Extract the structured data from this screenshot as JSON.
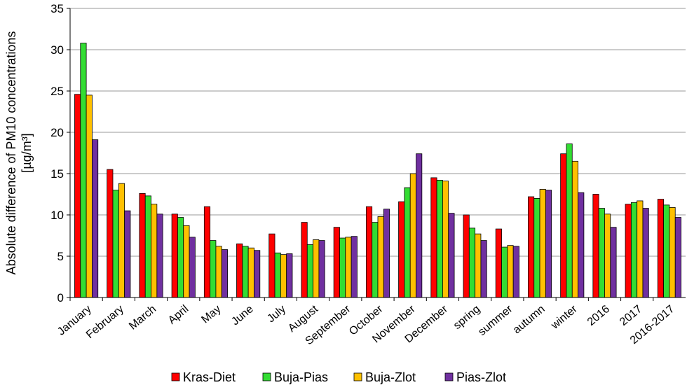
{
  "chart_data": {
    "type": "bar",
    "y_label_lines": [
      "Absolute difference of PM10 concentrations",
      "[µg/m³]"
    ],
    "categories": [
      "January",
      "February",
      "March",
      "April",
      "May",
      "June",
      "July",
      "August",
      "September",
      "October",
      "November",
      "December",
      "spring",
      "summer",
      "autumn",
      "winter",
      "2016",
      "2017",
      "2016-2017"
    ],
    "series": [
      {
        "name": "Kras-Diet",
        "color": "#ff0000",
        "values": [
          24.6,
          15.5,
          12.6,
          10.1,
          11.0,
          6.5,
          7.7,
          9.1,
          8.5,
          11.0,
          11.6,
          14.5,
          10.0,
          8.3,
          12.2,
          17.4,
          12.5,
          11.3,
          11.9
        ]
      },
      {
        "name": "Buja-Pias",
        "color": "#33dd33",
        "values": [
          30.8,
          13.0,
          12.3,
          9.7,
          6.9,
          6.2,
          5.4,
          6.4,
          7.2,
          9.1,
          13.3,
          14.2,
          8.4,
          6.1,
          12.0,
          18.6,
          10.8,
          11.5,
          11.2
        ]
      },
      {
        "name": "Buja-Zlot",
        "color": "#ffc000",
        "values": [
          24.5,
          13.8,
          11.3,
          8.7,
          6.2,
          6.0,
          5.2,
          7.0,
          7.3,
          9.8,
          15.0,
          14.1,
          7.7,
          6.3,
          13.1,
          16.5,
          10.1,
          11.7,
          10.9
        ]
      },
      {
        "name": "Pias-Zlot",
        "color": "#7030a0",
        "values": [
          19.1,
          10.5,
          10.1,
          7.3,
          5.8,
          5.7,
          5.3,
          6.9,
          7.4,
          10.7,
          17.4,
          10.2,
          6.9,
          6.2,
          13.0,
          12.7,
          8.5,
          10.8,
          9.7
        ]
      }
    ],
    "ylim": [
      0,
      35
    ],
    "yticks": [
      0,
      5,
      10,
      15,
      20,
      25,
      30,
      35
    ],
    "grid": true,
    "legend": "bottom"
  }
}
